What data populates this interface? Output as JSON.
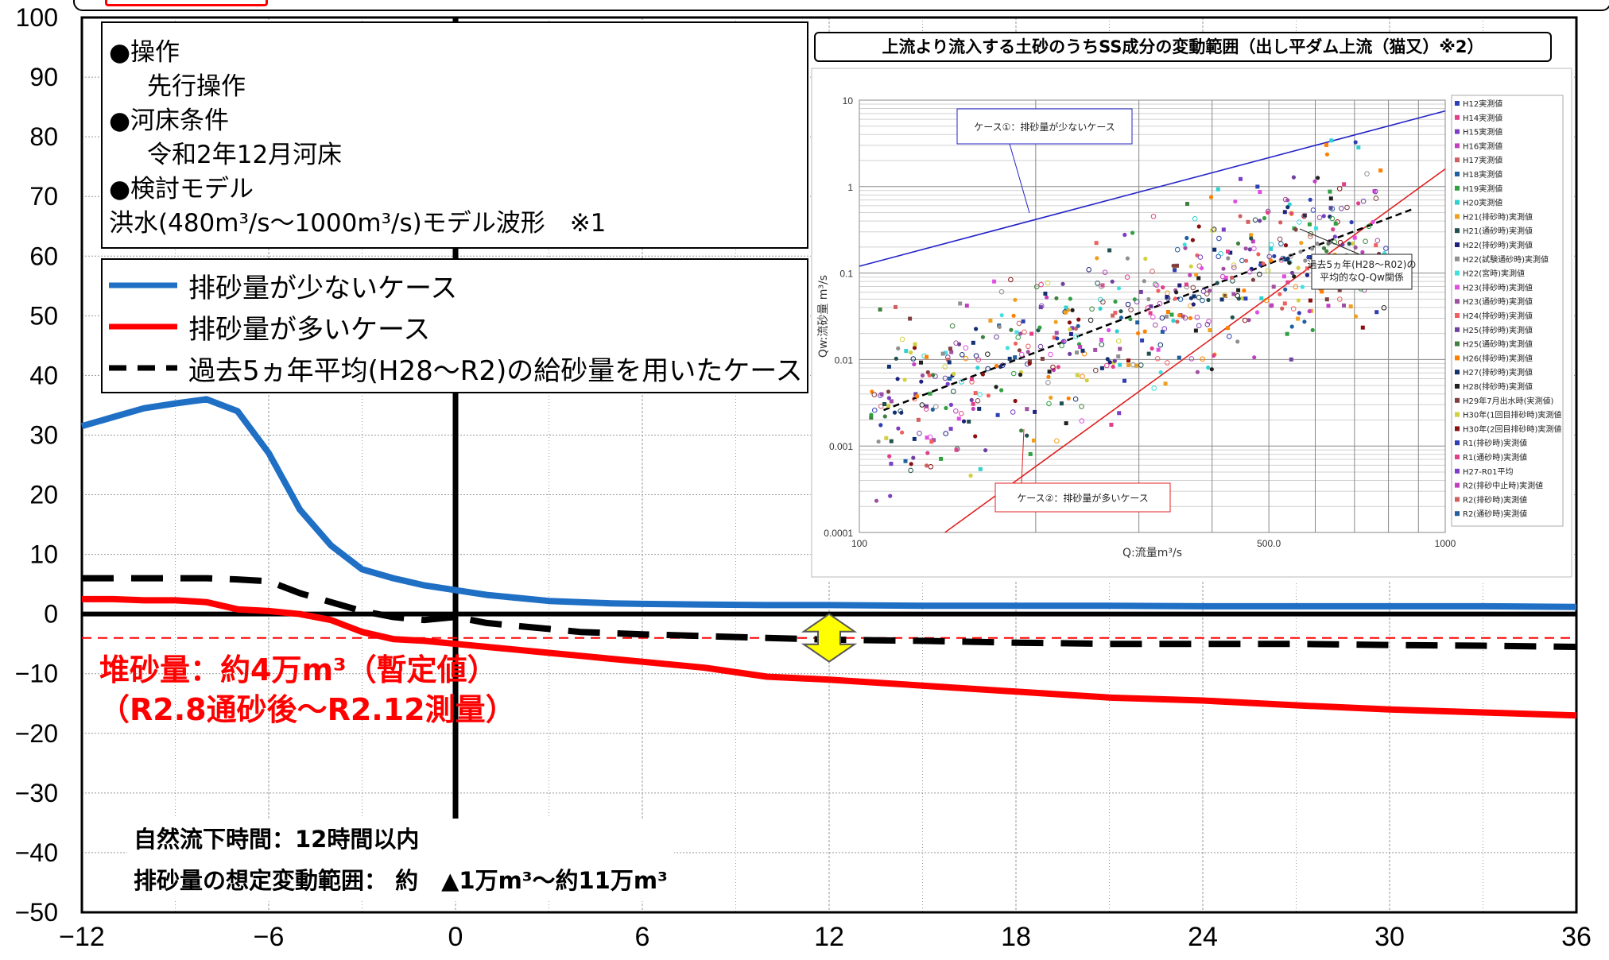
{
  "chart_data": {
    "type": "line",
    "x": [
      -12,
      -11,
      -10,
      -9,
      -8,
      -7,
      -6,
      -5,
      -4,
      -3,
      -2,
      -1,
      0,
      1,
      2,
      3,
      4,
      5,
      6,
      8,
      10,
      12,
      15,
      18,
      21,
      24,
      27,
      30,
      33,
      36
    ],
    "xlim": [
      -12,
      36
    ],
    "ylim": [
      -50,
      100
    ],
    "xticks": [
      -12,
      -6,
      0,
      6,
      12,
      18,
      24,
      30,
      36
    ],
    "yticks": [
      100,
      90,
      80,
      70,
      60,
      50,
      40,
      30,
      20,
      10,
      0,
      -10,
      -20,
      -30,
      -40,
      -50
    ],
    "grid": true,
    "series": [
      {
        "name": "排砂量が少ないケース",
        "color": "#1f6fc5",
        "style": "solid",
        "values": [
          31.5,
          33,
          34.5,
          35.3,
          36,
          34,
          27,
          17.5,
          11.5,
          7.5,
          6,
          4.8,
          4,
          3.2,
          2.7,
          2.2,
          2,
          1.8,
          1.7,
          1.6,
          1.5,
          1.5,
          1.4,
          1.4,
          1.4,
          1.3,
          1.3,
          1.3,
          1.3,
          1.2
        ]
      },
      {
        "name": "排砂量が多いケース",
        "color": "#ff0000",
        "style": "solid",
        "values": [
          2.5,
          2.5,
          2.3,
          2.3,
          2.0,
          0.8,
          0.5,
          0,
          -1.0,
          -3.0,
          -4.2,
          -4.5,
          -5,
          -5.5,
          -6,
          -6.5,
          -7,
          -7.5,
          -8,
          -9,
          -10.5,
          -11,
          -12,
          -13,
          -14,
          -14.5,
          -15.3,
          -16,
          -16.5,
          -17
        ]
      },
      {
        "name": "過去5ヵ年平均(H28～R2)の給砂量を用いたケース",
        "color": "#000000",
        "style": "dashed",
        "values": [
          6,
          6,
          6,
          6,
          6,
          5.8,
          5.5,
          3.5,
          2.0,
          0.5,
          -0.5,
          -1.0,
          -0.5,
          -1.5,
          -2.0,
          -2.5,
          -3.0,
          -3.2,
          -3.4,
          -3.7,
          -4.0,
          -4.3,
          -4.5,
          -4.8,
          -5,
          -5,
          -5,
          -5.2,
          -5.3,
          -5.5
        ]
      }
    ],
    "reference_line": {
      "value": -4,
      "color": "#ff0000",
      "style": "dashed"
    },
    "vertical_marker": {
      "x": 0,
      "color": "#000000"
    },
    "arrow": {
      "x": 12,
      "y_from": 0,
      "y_to": -8,
      "color": "#ffff00"
    }
  },
  "conditions": {
    "operation_head": "●操作",
    "operation_value": "先行操作",
    "bed_head": "●河床条件",
    "bed_value": "令和2年12月河床",
    "model_head": "●検討モデル",
    "model_value": "洪水(480m³/s～1000m³/s)モデル波形　※1"
  },
  "legend": {
    "low": "排砂量が少ないケース",
    "high": "排砂量が多いケース",
    "avg": "過去5ヵ年平均(H28～R2)の給砂量を用いたケース"
  },
  "annotations": {
    "sediment_line1": "堆砂量：約4万m³（暫定値）",
    "sediment_line2": "（R2.8通砂後～R2.12測量）",
    "natural_flow": "自然流下時間：12時間以内",
    "range": "排砂量の想定変動範囲：  約　▲1万m³～約11万m³"
  },
  "inset": {
    "title": "上流より流入する土砂のうちSS成分の変動範囲（出し平ダム上流（猫又）※2）",
    "xlabel": "Q:流量m³/s",
    "ylabel": "Qw:流砂量 m³/s",
    "xticks": [
      "100",
      "500.0",
      "1000"
    ],
    "yticks": [
      "10",
      "1",
      "0.1",
      "0.01",
      "0.001",
      "0.0001"
    ],
    "case1": "ケース①：排砂量が少ないケース",
    "case2": "ケース②：排砂量が多いケース",
    "avg_note_line1": "過去5ヵ年(H28～R02)の",
    "avg_note_line2": "平均的なQ-Qw関係",
    "legend": [
      "H12実測値",
      "H14実測値",
      "H15実測値",
      "H16実測値",
      "H17実測値",
      "H18実測値",
      "H19実測値",
      "H20実測値",
      "H21(排砂時)実測値",
      "H21(通砂時)実測値",
      "H22(排砂時)実測値",
      "H22(試験通砂時)実測値",
      "H22(宮時)実測値",
      "H23(排砂時)実測値",
      "H23(通砂時)実測値",
      "H24(排砂時)実測値",
      "H25(排砂時)実測値",
      "H25(通砂時)実測値",
      "H26(排砂時)実測値",
      "H27(排砂時)実測値",
      "H28(排砂時)実測値",
      "H29年7月出水時(実測値)",
      "H30年(1回目排砂時)実測値",
      "H30年(2回目排砂時)実測値",
      "R1(排砂時)実測値",
      "R1(通砂時)実測値",
      "H27-R01平均",
      "R2(排砂中止時)実測値",
      "R2(排砂時)実測値",
      "R2(通砂時)実測値"
    ]
  }
}
